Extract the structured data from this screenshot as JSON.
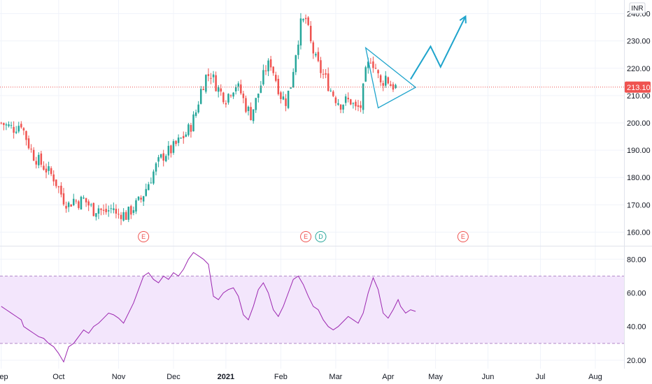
{
  "currency": "INR",
  "chart_data": [
    {
      "type": "candlestick",
      "pane": "price",
      "ylim": [
        155,
        245
      ],
      "y_ticks": [
        160,
        170,
        180,
        190,
        200,
        210,
        220,
        230,
        240
      ],
      "y_tick_labels": [
        "160.00",
        "170.00",
        "180.00",
        "190.00",
        "200.00",
        "210.00",
        "220.00",
        "230.00",
        "240.00"
      ],
      "x_tick_labels": [
        "Sep",
        "Oct",
        "Nov",
        "Dec",
        "2021",
        "Feb",
        "Mar",
        "Apr",
        "May",
        "Jun",
        "Jul",
        "Aug"
      ],
      "x_ticks": [
        0,
        23,
        47,
        69,
        90,
        112,
        134,
        155,
        174,
        195,
        216,
        238
      ],
      "total_bars": 250,
      "last_price": 213.1,
      "last_price_label": "213.10",
      "colors": {
        "up": "#26a69a",
        "down": "#ef5350",
        "line": "#ef5350",
        "drawing": "#1fa4cc"
      },
      "drawing_triangle": [
        [
          146,
          227.5
        ],
        [
          151,
          205.5
        ],
        [
          166,
          213
        ]
      ],
      "drawing_arrow": [
        [
          164,
          216
        ],
        [
          172,
          228
        ],
        [
          176,
          220.5
        ],
        [
          186,
          239
        ]
      ],
      "events": [
        {
          "label": "E",
          "x": 57,
          "color": "#ef5350"
        },
        {
          "label": "E",
          "x": 122,
          "color": "#ef5350"
        },
        {
          "label": "D",
          "x": 128,
          "color": "#26a69a"
        },
        {
          "label": "E",
          "x": 185,
          "color": "#ef5350"
        }
      ],
      "path": [
        [
          0,
          200
        ],
        [
          2,
          199
        ],
        [
          5,
          198
        ],
        [
          8,
          200
        ],
        [
          9,
          197
        ],
        [
          11,
          192
        ],
        [
          13,
          188
        ],
        [
          15,
          186
        ],
        [
          17,
          184
        ],
        [
          19,
          182
        ],
        [
          21,
          180
        ],
        [
          23,
          176
        ],
        [
          25,
          172
        ],
        [
          27,
          170
        ],
        [
          29,
          172
        ],
        [
          31,
          171
        ],
        [
          33,
          172
        ],
        [
          35,
          170
        ],
        [
          37,
          168
        ],
        [
          39,
          169
        ],
        [
          41,
          167
        ],
        [
          43,
          168
        ],
        [
          45,
          169
        ],
        [
          46,
          166
        ],
        [
          48,
          167
        ],
        [
          50,
          166
        ],
        [
          52,
          168
        ],
        [
          54,
          170
        ],
        [
          56,
          172
        ],
        [
          58,
          176
        ],
        [
          60,
          180
        ],
        [
          62,
          184
        ],
        [
          64,
          187
        ],
        [
          66,
          189
        ],
        [
          68,
          190
        ],
        [
          70,
          192
        ],
        [
          72,
          194
        ],
        [
          74,
          196
        ],
        [
          76,
          199
        ],
        [
          78,
          204
        ],
        [
          80,
          212
        ],
        [
          82,
          217
        ],
        [
          84,
          218
        ],
        [
          86,
          214
        ],
        [
          88,
          211
        ],
        [
          90,
          209
        ],
        [
          92,
          212
        ],
        [
          94,
          214
        ],
        [
          96,
          211
        ],
        [
          98,
          206
        ],
        [
          100,
          203
        ],
        [
          102,
          208
        ],
        [
          104,
          214
        ],
        [
          106,
          220
        ],
        [
          108,
          222
        ],
        [
          110,
          216
        ],
        [
          112,
          210
        ],
        [
          114,
          208
        ],
        [
          116,
          214
        ],
        [
          118,
          226
        ],
        [
          120,
          236
        ],
        [
          122,
          238
        ],
        [
          124,
          229
        ],
        [
          126,
          223
        ],
        [
          128,
          219
        ],
        [
          130,
          216
        ],
        [
          132,
          212
        ],
        [
          134,
          209
        ],
        [
          136,
          207
        ],
        [
          138,
          208
        ],
        [
          140,
          208
        ],
        [
          142,
          205
        ],
        [
          144,
          206
        ],
        [
          146,
          218
        ],
        [
          148,
          224
        ],
        [
          150,
          220
        ],
        [
          152,
          214
        ],
        [
          154,
          217
        ],
        [
          156,
          214
        ],
        [
          158,
          213.1
        ]
      ]
    },
    {
      "type": "line",
      "pane": "rsi",
      "ylim": [
        15,
        88
      ],
      "y_ticks": [
        20,
        40,
        60,
        80
      ],
      "y_tick_labels": [
        "20.00",
        "40.00",
        "60.00",
        "80.00"
      ],
      "band": [
        30,
        70
      ],
      "colors": {
        "line": "#9c27b0",
        "band_fill": "#f3e6fc",
        "band_line": "#b388c9"
      },
      "path": [
        [
          0,
          52
        ],
        [
          2,
          50
        ],
        [
          4,
          48
        ],
        [
          6,
          46
        ],
        [
          8,
          44
        ],
        [
          9,
          40
        ],
        [
          11,
          38
        ],
        [
          13,
          36
        ],
        [
          15,
          34
        ],
        [
          17,
          33
        ],
        [
          19,
          30
        ],
        [
          21,
          28
        ],
        [
          23,
          24
        ],
        [
          25,
          19
        ],
        [
          27,
          28
        ],
        [
          29,
          30
        ],
        [
          31,
          34
        ],
        [
          33,
          38
        ],
        [
          35,
          36
        ],
        [
          37,
          40
        ],
        [
          39,
          42
        ],
        [
          41,
          45
        ],
        [
          43,
          48
        ],
        [
          45,
          47
        ],
        [
          47,
          45
        ],
        [
          49,
          42
        ],
        [
          51,
          48
        ],
        [
          53,
          54
        ],
        [
          55,
          62
        ],
        [
          57,
          70
        ],
        [
          59,
          72
        ],
        [
          61,
          68
        ],
        [
          63,
          66
        ],
        [
          65,
          70
        ],
        [
          67,
          68
        ],
        [
          69,
          72
        ],
        [
          71,
          70
        ],
        [
          73,
          74
        ],
        [
          75,
          80
        ],
        [
          77,
          84
        ],
        [
          79,
          82
        ],
        [
          81,
          80
        ],
        [
          83,
          77
        ],
        [
          85,
          58
        ],
        [
          87,
          56
        ],
        [
          89,
          60
        ],
        [
          91,
          62
        ],
        [
          93,
          63
        ],
        [
          95,
          58
        ],
        [
          97,
          47
        ],
        [
          99,
          44
        ],
        [
          101,
          52
        ],
        [
          103,
          62
        ],
        [
          105,
          66
        ],
        [
          107,
          60
        ],
        [
          109,
          50
        ],
        [
          111,
          46
        ],
        [
          113,
          52
        ],
        [
          115,
          60
        ],
        [
          117,
          68
        ],
        [
          119,
          70
        ],
        [
          121,
          65
        ],
        [
          123,
          58
        ],
        [
          125,
          52
        ],
        [
          127,
          50
        ],
        [
          129,
          44
        ],
        [
          131,
          40
        ],
        [
          133,
          38
        ],
        [
          135,
          40
        ],
        [
          137,
          43
        ],
        [
          139,
          46
        ],
        [
          141,
          44
        ],
        [
          143,
          42
        ],
        [
          145,
          48
        ],
        [
          147,
          60
        ],
        [
          149,
          69
        ],
        [
          151,
          62
        ],
        [
          153,
          48
        ],
        [
          155,
          45
        ],
        [
          157,
          50
        ],
        [
          159,
          56
        ],
        [
          160,
          52
        ],
        [
          162,
          48
        ],
        [
          164,
          50
        ],
        [
          166,
          49
        ]
      ]
    }
  ]
}
